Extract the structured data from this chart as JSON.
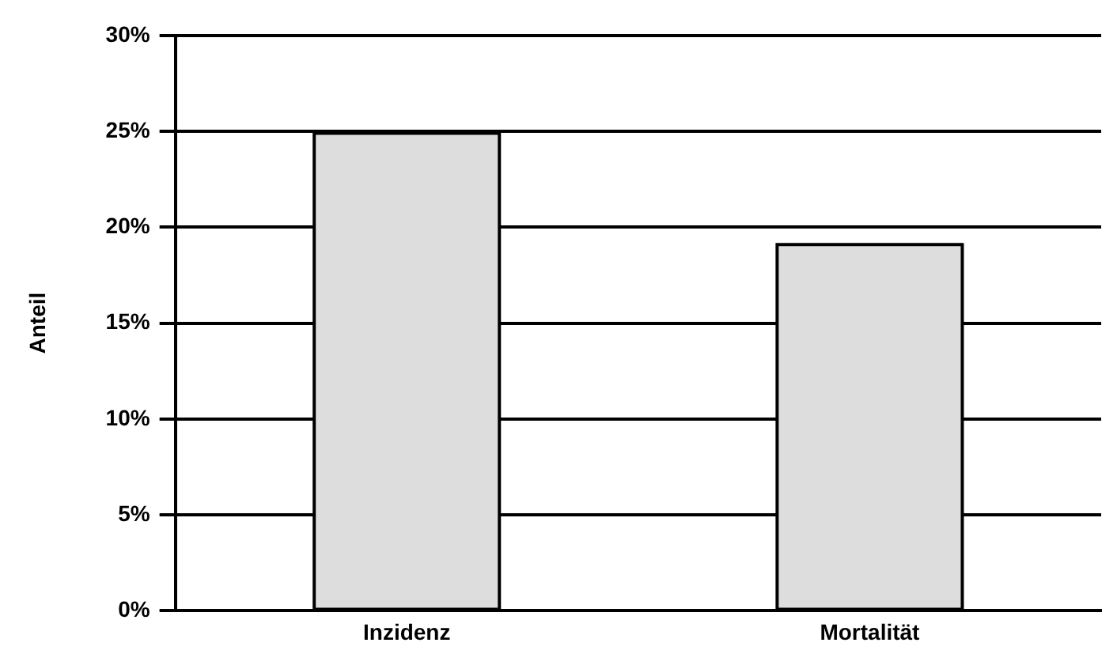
{
  "chart_data": {
    "type": "bar",
    "ylabel": "Anteil",
    "categories": [
      "Inzidenz",
      "Mortalität"
    ],
    "values": [
      24.9,
      19.1
    ],
    "color": "#dddddd",
    "ylim": [
      0,
      30
    ],
    "yticks": [
      {
        "value": 0,
        "label": "0%"
      },
      {
        "value": 5,
        "label": "5%"
      },
      {
        "value": 10,
        "label": "10%"
      },
      {
        "value": 15,
        "label": "15%"
      },
      {
        "value": 20,
        "label": "20%"
      },
      {
        "value": 25,
        "label": "25%"
      },
      {
        "value": 30,
        "label": "30%"
      }
    ],
    "grid": "y",
    "legend": false
  }
}
